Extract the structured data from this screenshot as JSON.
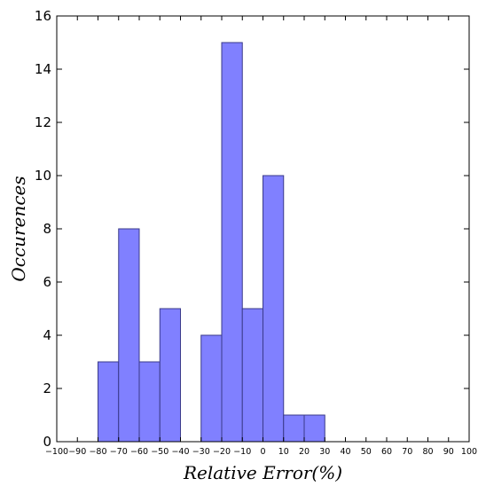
{
  "chart_data": {
    "type": "bar",
    "title": "",
    "xlabel": "Relative Error(%)",
    "ylabel": "Occurences",
    "bins": [
      {
        "start": -100,
        "end": -90,
        "count": 0
      },
      {
        "start": -90,
        "end": -80,
        "count": 0
      },
      {
        "start": -80,
        "end": -70,
        "count": 3
      },
      {
        "start": -70,
        "end": -60,
        "count": 8
      },
      {
        "start": -60,
        "end": -50,
        "count": 3
      },
      {
        "start": -50,
        "end": -40,
        "count": 5
      },
      {
        "start": -40,
        "end": -30,
        "count": 0
      },
      {
        "start": -30,
        "end": -20,
        "count": 4
      },
      {
        "start": -20,
        "end": -10,
        "count": 15
      },
      {
        "start": -10,
        "end": 0,
        "count": 5
      },
      {
        "start": 0,
        "end": 10,
        "count": 10
      },
      {
        "start": 10,
        "end": 20,
        "count": 1
      },
      {
        "start": 20,
        "end": 30,
        "count": 1
      },
      {
        "start": 30,
        "end": 40,
        "count": 0
      },
      {
        "start": 40,
        "end": 50,
        "count": 0
      },
      {
        "start": 50,
        "end": 60,
        "count": 0
      },
      {
        "start": 60,
        "end": 70,
        "count": 0
      },
      {
        "start": 70,
        "end": 80,
        "count": 0
      },
      {
        "start": 80,
        "end": 90,
        "count": 0
      },
      {
        "start": 90,
        "end": 100,
        "count": 0
      }
    ],
    "xlim": [
      -100,
      100
    ],
    "ylim": [
      0,
      16
    ],
    "xticks": [
      "−100",
      "−90",
      "−80",
      "−70",
      "−60",
      "−50",
      "−40",
      "−30",
      "−20",
      "−10",
      "0",
      "10",
      "20",
      "30",
      "40",
      "50",
      "60",
      "70",
      "80",
      "90",
      "100"
    ],
    "yticks": [
      "0",
      "2",
      "4",
      "6",
      "8",
      "10",
      "12",
      "14",
      "16"
    ],
    "grid": false,
    "colors": {
      "bar_fill": "#8080ff",
      "bar_edge": "#3a3a8a",
      "axis": "#000000"
    }
  }
}
